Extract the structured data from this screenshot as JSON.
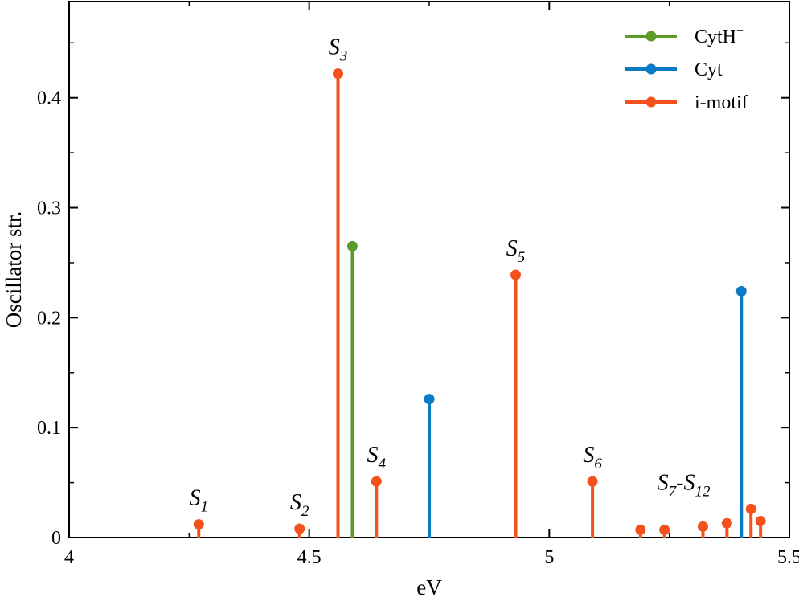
{
  "chart_data": {
    "type": "stem",
    "xlabel": "eV",
    "ylabel": "Oscillator str.",
    "xlim": [
      4,
      5.5
    ],
    "ylim": [
      0,
      0.4875
    ],
    "x_ticks": [
      4,
      4.5,
      5,
      5.5
    ],
    "x_tick_labels": [
      "4",
      "4.5",
      "5",
      "5.5"
    ],
    "y_ticks": [
      0,
      0.1,
      0.2,
      0.3,
      0.4
    ],
    "y_tick_labels": [
      "0",
      "0.1",
      "0.2",
      "0.3",
      "0.4"
    ],
    "legend_position": "top-right",
    "grid": false,
    "series": [
      {
        "name": "CytH",
        "name_sup": "+",
        "color": "#5b9b2a",
        "points": [
          {
            "x": 4.59,
            "y": 0.265
          }
        ]
      },
      {
        "name": "Cyt",
        "color": "#0a7bc4",
        "points": [
          {
            "x": 4.75,
            "y": 0.126
          },
          {
            "x": 5.4,
            "y": 0.224
          }
        ]
      },
      {
        "name": "i-motif",
        "color": "#f5511c",
        "points": [
          {
            "x": 4.27,
            "y": 0.012
          },
          {
            "x": 4.48,
            "y": 0.008
          },
          {
            "x": 4.56,
            "y": 0.422
          },
          {
            "x": 4.64,
            "y": 0.051
          },
          {
            "x": 4.93,
            "y": 0.239
          },
          {
            "x": 5.09,
            "y": 0.051
          },
          {
            "x": 5.19,
            "y": 0.007
          },
          {
            "x": 5.24,
            "y": 0.007
          },
          {
            "x": 5.32,
            "y": 0.01
          },
          {
            "x": 5.37,
            "y": 0.013
          },
          {
            "x": 5.42,
            "y": 0.026
          },
          {
            "x": 5.44,
            "y": 0.015
          }
        ]
      }
    ],
    "annotations": [
      {
        "base": "S",
        "sub": "1",
        "x": 4.27,
        "y": 0.012
      },
      {
        "base": "S",
        "sub": "2",
        "x": 4.48,
        "y": 0.008
      },
      {
        "base": "S",
        "sub": "3",
        "x": 4.56,
        "y": 0.422
      },
      {
        "base": "S",
        "sub": "4",
        "x": 4.64,
        "y": 0.051
      },
      {
        "base": "S",
        "sub": "5",
        "x": 4.93,
        "y": 0.239
      },
      {
        "base": "S",
        "sub": "6",
        "x": 5.09,
        "y": 0.051
      },
      {
        "base": "S",
        "sub": "7",
        "base2": "-S",
        "sub2": "12",
        "x": 5.28,
        "y": 0.026
      }
    ]
  }
}
